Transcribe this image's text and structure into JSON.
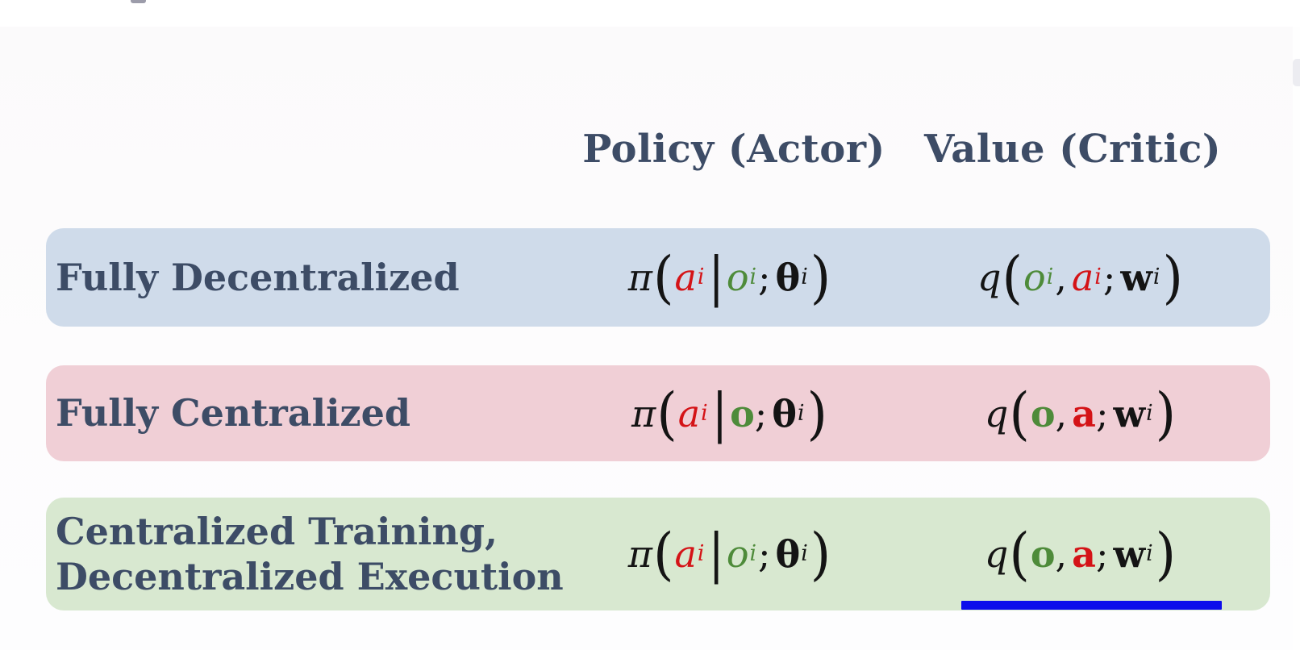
{
  "colors": {
    "heading": "#3d4c66",
    "math-red": "#d41317",
    "math-green": "#4e8b3a",
    "math-black": "#141414",
    "underline-blue": "#0d0deb",
    "row-blue": "#cfdbea",
    "row-pink": "#f0cfd6",
    "row-green": "#d8e8d0"
  },
  "table": {
    "headers": [
      {
        "label": "Policy (Actor)"
      },
      {
        "label": "Value (Critic)"
      }
    ],
    "rows": [
      {
        "label": "Fully Decentralized",
        "bg": "#cfdbea",
        "policy": [
          {
            "t": "π",
            "cls": "c-black it"
          },
          {
            "t": "(",
            "cls": "c-black paren"
          },
          {
            "t": "a",
            "cls": "c-red it",
            "sup": "i",
            "supcls": "c-red"
          },
          {
            "t": "|",
            "cls": "c-black bar"
          },
          {
            "t": "o",
            "cls": "c-green it",
            "sup": "i",
            "supcls": "c-green"
          },
          {
            "t": ";",
            "cls": "c-black semi"
          },
          {
            "t": "θ",
            "cls": "c-black bd",
            "sup": "i",
            "supcls": "c-black"
          },
          {
            "t": ")",
            "cls": "c-black paren"
          }
        ],
        "value": [
          {
            "t": "q",
            "cls": "c-black it"
          },
          {
            "t": "(",
            "cls": "c-black paren"
          },
          {
            "t": "o",
            "cls": "c-green it",
            "sup": "i",
            "supcls": "c-green"
          },
          {
            "t": ",",
            "cls": "c-black semi"
          },
          {
            "t": "a",
            "cls": "c-red it",
            "sup": "i",
            "supcls": "c-red"
          },
          {
            "t": ";",
            "cls": "c-black semi"
          },
          {
            "t": "w",
            "cls": "c-black bd",
            "sup": "i",
            "supcls": "c-black"
          },
          {
            "t": ")",
            "cls": "c-black paren"
          }
        ]
      },
      {
        "label": "Fully Centralized",
        "bg": "#f0cfd6",
        "policy": [
          {
            "t": "π",
            "cls": "c-black it"
          },
          {
            "t": "(",
            "cls": "c-black paren"
          },
          {
            "t": "a",
            "cls": "c-red it",
            "sup": "i",
            "supcls": "c-red"
          },
          {
            "t": "|",
            "cls": "c-black bar"
          },
          {
            "t": "o",
            "cls": "c-green bd"
          },
          {
            "t": ";",
            "cls": "c-black semi"
          },
          {
            "t": "θ",
            "cls": "c-black bd",
            "sup": "i",
            "supcls": "c-black"
          },
          {
            "t": ")",
            "cls": "c-black paren"
          }
        ],
        "value": [
          {
            "t": "q",
            "cls": "c-black it"
          },
          {
            "t": "(",
            "cls": "c-black paren"
          },
          {
            "t": "o",
            "cls": "c-green bd"
          },
          {
            "t": ",",
            "cls": "c-black semi"
          },
          {
            "t": "a",
            "cls": "c-red bd"
          },
          {
            "t": ";",
            "cls": "c-black semi"
          },
          {
            "t": "w",
            "cls": "c-black bd",
            "sup": "i",
            "supcls": "c-black"
          },
          {
            "t": ")",
            "cls": "c-black paren"
          }
        ]
      },
      {
        "label": "Centralized Training,",
        "label2": "Decentralized Execution",
        "bg": "#d8e8d0",
        "policy": [
          {
            "t": "π",
            "cls": "c-black it"
          },
          {
            "t": "(",
            "cls": "c-black paren"
          },
          {
            "t": "a",
            "cls": "c-red it",
            "sup": "i",
            "supcls": "c-red"
          },
          {
            "t": "|",
            "cls": "c-black bar"
          },
          {
            "t": "o",
            "cls": "c-green it",
            "sup": "i",
            "supcls": "c-green"
          },
          {
            "t": ";",
            "cls": "c-black semi"
          },
          {
            "t": "θ",
            "cls": "c-black bd",
            "sup": "i",
            "supcls": "c-black"
          },
          {
            "t": ")",
            "cls": "c-black paren"
          }
        ],
        "value": [
          {
            "t": "q",
            "cls": "c-black it"
          },
          {
            "t": "(",
            "cls": "c-black paren"
          },
          {
            "t": "o",
            "cls": "c-green bd"
          },
          {
            "t": ",",
            "cls": "c-black semi"
          },
          {
            "t": "a",
            "cls": "c-red bd"
          },
          {
            "t": ";",
            "cls": "c-black semi"
          },
          {
            "t": "w",
            "cls": "c-black bd",
            "sup": "i",
            "supcls": "c-black"
          },
          {
            "t": ")",
            "cls": "c-black paren"
          }
        ]
      }
    ]
  }
}
